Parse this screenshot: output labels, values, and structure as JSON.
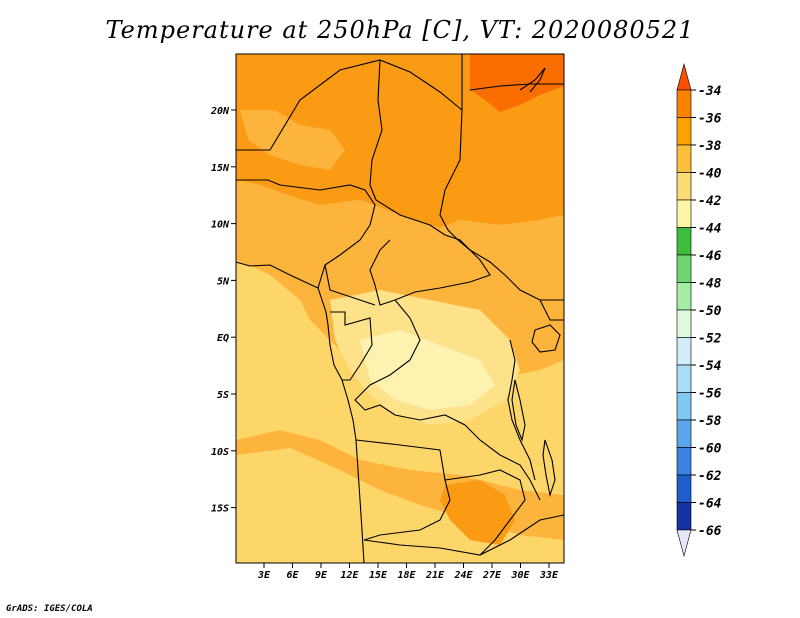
{
  "title": "Temperature at 250hPa [C], VT: 2020080521",
  "credit": "GrADS: IGES/COLA",
  "axes": {
    "lat_labels": [
      "20N",
      "15N",
      "10N",
      "5N",
      "EQ",
      "5S",
      "10S",
      "15S"
    ],
    "lon_labels": [
      "3E",
      "6E",
      "9E",
      "12E",
      "15E",
      "18E",
      "21E",
      "24E",
      "27E",
      "30E",
      "33E"
    ]
  },
  "colorbar": {
    "labels": [
      "-34",
      "-36",
      "-38",
      "-40",
      "-42",
      "-44",
      "-46",
      "-48",
      "-50",
      "-52",
      "-54",
      "-56",
      "-58",
      "-60",
      "-62",
      "-64",
      "-66"
    ],
    "colors": [
      "#fa4f00",
      "#fa8200",
      "#fba200",
      "#fcbf3c",
      "#fddc78",
      "#fdf5a8",
      "#3cbd3c",
      "#6fd66f",
      "#a3eea3",
      "#dff9df",
      "#d2ecfa",
      "#aadcfa",
      "#82c8f5",
      "#5aa5eb",
      "#3c82e1",
      "#1e5fcd",
      "#1432a5",
      "#0a1464",
      "#e6e6fa"
    ],
    "over_color": "#fa4f00",
    "under_color": "#e6e6fa"
  },
  "field_colors": {
    "t36": "#fa6e00",
    "t38": "#fb9b14",
    "t40": "#fcb43c",
    "t42": "#fdd66a",
    "t44": "#fde28a",
    "t46": "#fdf2b0"
  }
}
